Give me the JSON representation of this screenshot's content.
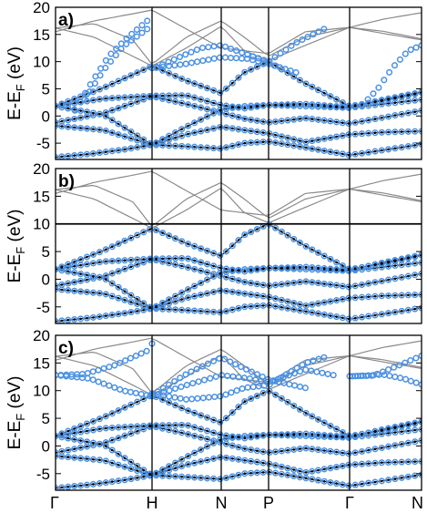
{
  "chart_data": [
    {
      "type": "line",
      "panel_label": "a)",
      "ylabel_main": "E-E",
      "ylabel_sub": "F",
      "ylabel_unit": " (eV)",
      "ylim": [
        -8,
        20
      ],
      "yticks": [
        -5,
        0,
        5,
        10,
        15,
        20
      ],
      "k_path": [
        "Γ",
        "H",
        "N",
        "P",
        "Γ",
        "N"
      ],
      "window_top": null,
      "wannier_high": "sparse"
    },
    {
      "type": "line",
      "panel_label": "b)",
      "ylabel_main": "E-E",
      "ylabel_sub": "F",
      "ylabel_unit": " (eV)",
      "ylim": [
        -8,
        20
      ],
      "yticks": [
        -5,
        0,
        5,
        10,
        15,
        20
      ],
      "k_path": [
        "Γ",
        "H",
        "N",
        "P",
        "Γ",
        "N"
      ],
      "window_top": 10,
      "wannier_high": "none"
    },
    {
      "type": "line",
      "panel_label": "c)",
      "ylabel_main": "E-E",
      "ylabel_sub": "F",
      "ylabel_unit": " (eV)",
      "ylim": [
        -8,
        20
      ],
      "yticks": [
        -5,
        0,
        5,
        10,
        15,
        20
      ],
      "k_path": [
        "Γ",
        "H",
        "N",
        "P",
        "Γ",
        "N"
      ],
      "window_top": null,
      "wannier_high": "dense"
    }
  ],
  "colors": {
    "dft_low": "#000000",
    "dft_high": "#8a8a8a",
    "wannier": "#4a90e2",
    "frame": "#000000"
  }
}
